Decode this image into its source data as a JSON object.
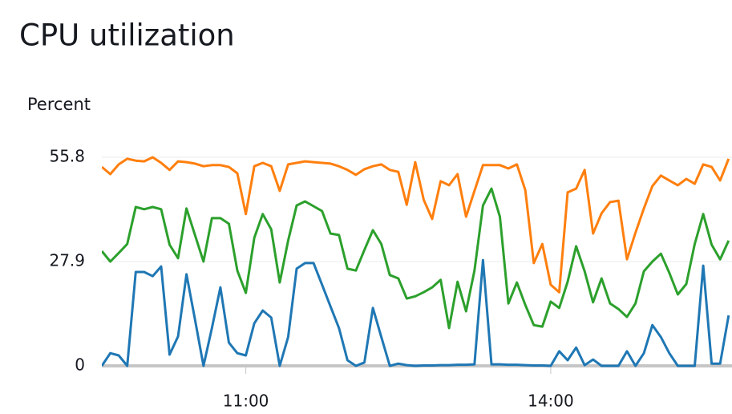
{
  "chart_data": {
    "type": "line",
    "title": "CPU utilization",
    "y_label": "Percent",
    "x": [
      "09:35",
      "09:40",
      "09:45",
      "09:50",
      "09:55",
      "10:00",
      "10:05",
      "10:10",
      "10:15",
      "10:20",
      "10:25",
      "10:30",
      "10:35",
      "10:40",
      "10:45",
      "10:50",
      "10:55",
      "11:00",
      "11:05",
      "11:10",
      "11:15",
      "11:20",
      "11:25",
      "11:30",
      "11:35",
      "11:40",
      "11:45",
      "11:50",
      "11:55",
      "12:00",
      "12:05",
      "12:10",
      "12:15",
      "12:20",
      "12:25",
      "12:30",
      "12:35",
      "12:40",
      "12:45",
      "12:50",
      "12:55",
      "13:00",
      "13:05",
      "13:10",
      "13:15",
      "13:20",
      "13:25",
      "13:30",
      "13:35",
      "13:40",
      "13:45",
      "13:50",
      "13:55",
      "14:00",
      "14:05",
      "14:10",
      "14:15",
      "14:20",
      "14:25",
      "14:30",
      "14:35",
      "14:40",
      "14:45",
      "14:50",
      "14:55",
      "15:00",
      "15:05",
      "15:10",
      "15:15",
      "15:20",
      "15:25",
      "15:30",
      "15:35",
      "15:40",
      "15:45"
    ],
    "series": [
      {
        "color": "#1f77b4",
        "values": [
          0,
          3.4,
          2.8,
          0,
          25.1,
          25.1,
          24.0,
          26.6,
          3.0,
          7.9,
          24.5,
          12.4,
          0,
          10.1,
          21.0,
          6.2,
          3.4,
          2.8,
          11.4,
          14.8,
          12.9,
          0,
          7.7,
          26.0,
          27.5,
          27.5,
          21.7,
          15.9,
          10.1,
          1.5,
          0,
          0.9,
          15.5,
          7.7,
          0,
          0.6,
          0.2,
          0,
          0.1,
          0.1,
          0.2,
          0.2,
          0.3,
          0.3,
          0.4,
          28.3,
          0.4,
          0.4,
          0.3,
          0.3,
          0.2,
          0.1,
          0.1,
          0,
          3.9,
          1.5,
          4.9,
          0.2,
          1.7,
          0,
          0,
          0,
          3.9,
          0,
          3.4,
          10.9,
          7.7,
          3.4,
          0,
          0,
          0,
          26.8,
          0.6,
          0.6,
          13.5
        ]
      },
      {
        "color": "#ff7f0e",
        "values": [
          53.2,
          51.3,
          53.9,
          55.4,
          54.9,
          54.7,
          55.8,
          54.3,
          52.4,
          54.7,
          54.5,
          54.1,
          53.4,
          53.7,
          53.7,
          53.2,
          51.5,
          40.6,
          53.4,
          54.3,
          53.4,
          46.8,
          53.9,
          54.3,
          54.7,
          54.5,
          54.3,
          54.1,
          53.4,
          52.4,
          51.1,
          52.6,
          53.4,
          53.9,
          52.4,
          51.9,
          43.1,
          54.5,
          44.4,
          39.3,
          49.4,
          48.3,
          51.3,
          39.9,
          46.8,
          53.7,
          53.7,
          53.7,
          52.8,
          53.9,
          47.0,
          27.5,
          32.6,
          21.7,
          19.7,
          46.4,
          47.4,
          52.4,
          35.4,
          40.8,
          43.8,
          44.2,
          28.5,
          35.6,
          42.1,
          48.1,
          50.9,
          49.6,
          48.3,
          50.0,
          48.7,
          53.9,
          53.2,
          49.6,
          55.4
        ]
      },
      {
        "color": "#2ca02c",
        "values": [
          30.7,
          27.9,
          30.2,
          32.6,
          42.5,
          41.9,
          42.5,
          41.9,
          32.4,
          28.8,
          42.1,
          35.0,
          27.9,
          39.5,
          39.5,
          38.0,
          25.5,
          19.5,
          34.3,
          40.6,
          36.5,
          22.3,
          33.5,
          42.9,
          44.0,
          42.7,
          41.4,
          35.4,
          35.0,
          26.0,
          25.5,
          31.0,
          36.3,
          32.6,
          24.3,
          23.4,
          18.0,
          18.6,
          19.7,
          21.0,
          23.0,
          10.1,
          22.5,
          14.6,
          25.5,
          42.9,
          47.4,
          39.9,
          16.7,
          22.3,
          16.3,
          10.9,
          10.5,
          17.2,
          15.5,
          22.5,
          32.0,
          25.3,
          17.0,
          23.4,
          16.7,
          15.2,
          13.1,
          16.7,
          25.3,
          27.9,
          30.0,
          24.9,
          19.1,
          21.9,
          32.6,
          40.6,
          32.4,
          28.5,
          33.5
        ]
      }
    ],
    "xlim": [
      "09:35",
      "15:47"
    ],
    "xticks": [
      "11:00",
      "14:00"
    ],
    "ylim": [
      0,
      55.8
    ],
    "yticks": [
      0,
      27.9,
      55.8
    ],
    "grid": true
  }
}
